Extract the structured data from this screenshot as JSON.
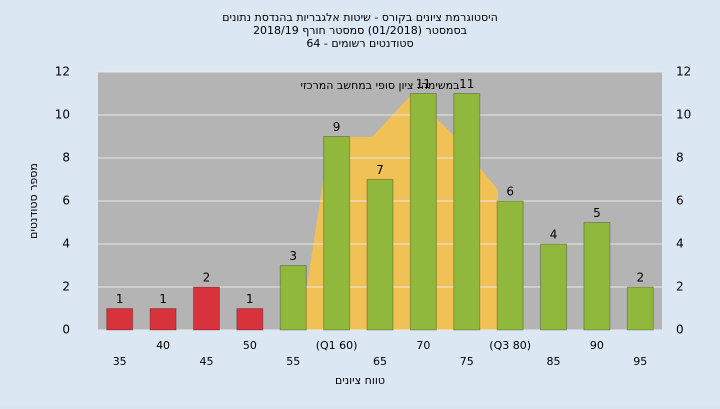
{
  "chart_data": {
    "type": "bar",
    "title": "היסטוגרמת ציונים בקורס - שיטות אלגבריות בהנדסת נתונים",
    "subtitle": "בסמסטר (01/2018) סמסטר חורף 2018/19",
    "note": "סטודנטים רשומים - 64",
    "annotation": "במשימה: ציון סופי במחשב המרכזי",
    "x_label": "טווח ציונים",
    "y_label": "מספר סטודנטים",
    "categories": [
      "35",
      "40",
      "45",
      "50",
      "55",
      "(Q1 60)",
      "65",
      "70",
      "75",
      "(Q3 80)",
      "85",
      "90",
      "95"
    ],
    "values": [
      1,
      1,
      2,
      1,
      3,
      9,
      7,
      11,
      11,
      6,
      4,
      5,
      2
    ],
    "colors": [
      "#d8323c",
      "#d8323c",
      "#d8323c",
      "#d8323c",
      "#8fb83c",
      "#8fb83c",
      "#8fb83c",
      "#8fb83c",
      "#8fb83c",
      "#8fb83c",
      "#8fb83c",
      "#8fb83c",
      "#8fb83c"
    ],
    "ylim": [
      0,
      12
    ],
    "yticks": [
      0,
      2,
      4,
      6,
      8,
      10,
      12
    ],
    "grid": true
  }
}
